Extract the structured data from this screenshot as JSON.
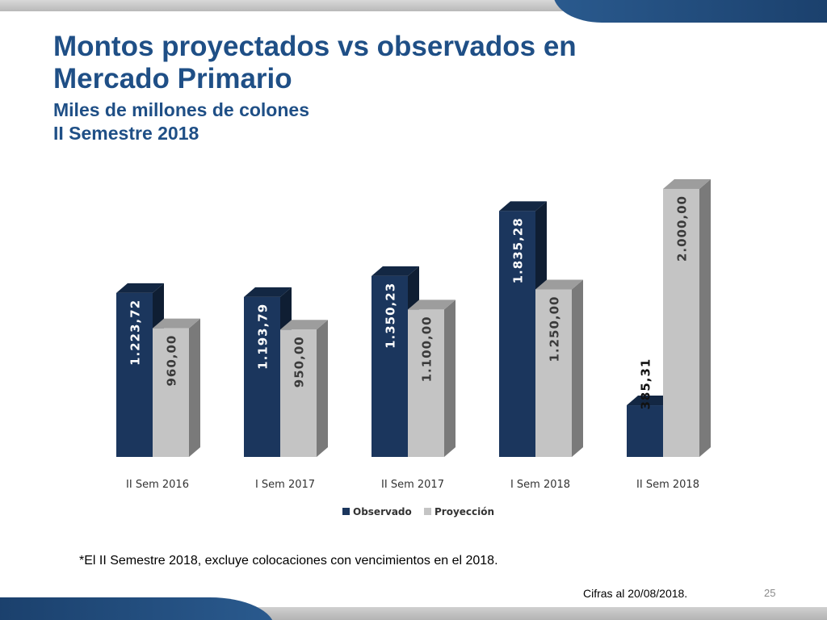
{
  "header": {
    "title_line1": "Montos proyectados vs observados en",
    "title_line2": "Mercado Primario",
    "subtitle": "Miles de millones de colones",
    "period": "II Semestre 2018"
  },
  "colors": {
    "observado": "#1b365d",
    "proyeccion": "#c4c4c4",
    "title": "#1f4f86"
  },
  "chart_data": {
    "type": "bar",
    "title": "",
    "xlabel": "",
    "ylabel": "Miles de millones de colones",
    "ylim": [
      0,
      2000
    ],
    "grid": false,
    "legend": "bottom",
    "categories": [
      "II Sem 2016",
      "I Sem 2017",
      "II Sem 2017",
      "I Sem 2018",
      "II Sem 2018"
    ],
    "series": [
      {
        "name": "Observado",
        "values": [
          1223.72,
          1193.79,
          1350.23,
          1835.28,
          385.31
        ],
        "labels": [
          "1.223,72",
          "1.193,79",
          "1.350,23",
          "1.835,28",
          "385,31"
        ]
      },
      {
        "name": "Proyección",
        "values": [
          960.0,
          950.0,
          1100.0,
          1250.0,
          2000.0
        ],
        "labels": [
          "960,00",
          "950,00",
          "1.100,00",
          "1.250,00",
          "2.000,00"
        ]
      }
    ]
  },
  "footer": {
    "note": "*El II Semestre 2018, excluye colocaciones con vencimientos en el 2018.",
    "cifras": "Cifras al 20/08/2018.",
    "page_number": "25"
  }
}
